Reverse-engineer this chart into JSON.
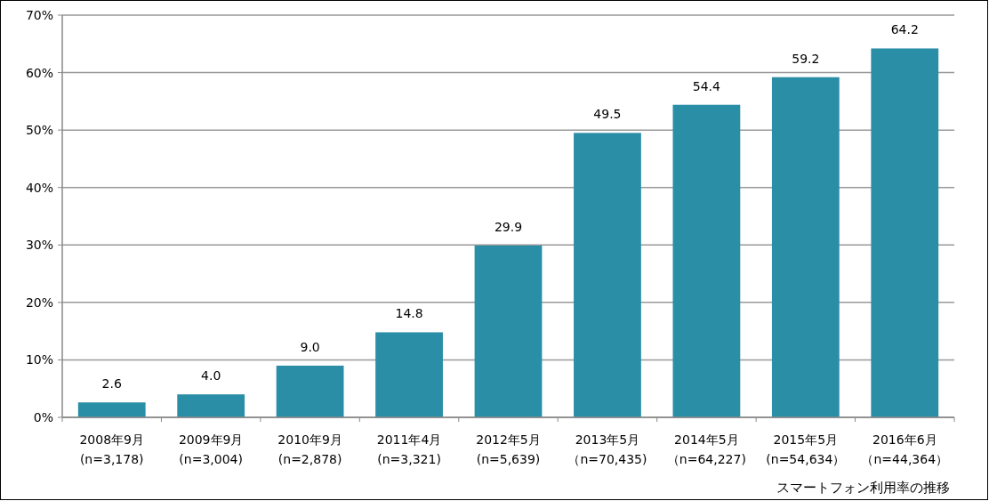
{
  "chart_data": {
    "type": "bar",
    "categories": [
      "2008年9月(n=3,178)",
      "2009年9月(n=3,004)",
      "2010年9月(n=2,878)",
      "2011年4月(n=3,321)",
      "2012年5月(n=5,639)",
      "2013年5月（n=70,435)",
      "2014年5月（n=64,227)",
      "2015年5月(n=54,634）",
      "2016年6月（n=44,364）"
    ],
    "values": [
      2.6,
      4.0,
      9.0,
      14.8,
      29.9,
      49.5,
      54.4,
      59.2,
      64.2
    ],
    "value_labels": [
      "2.6",
      "4.0",
      "9.0",
      "14.8",
      "29.9",
      "49.5",
      "54.4",
      "59.2",
      "64.2"
    ],
    "color": "#2a8ea6",
    "ylim": [
      0,
      70
    ],
    "yticks": [
      {
        "value": 0,
        "label": "0%"
      },
      {
        "value": 10,
        "label": "10%"
      },
      {
        "value": 20,
        "label": "20%"
      },
      {
        "value": 30,
        "label": "30%"
      },
      {
        "value": 40,
        "label": "40%"
      },
      {
        "value": 50,
        "label": "50%"
      },
      {
        "value": 60,
        "label": "60%"
      },
      {
        "value": 70,
        "label": "70%"
      }
    ],
    "grid": "y",
    "annotations": [
      "スマートフォン利用率の推移"
    ]
  }
}
